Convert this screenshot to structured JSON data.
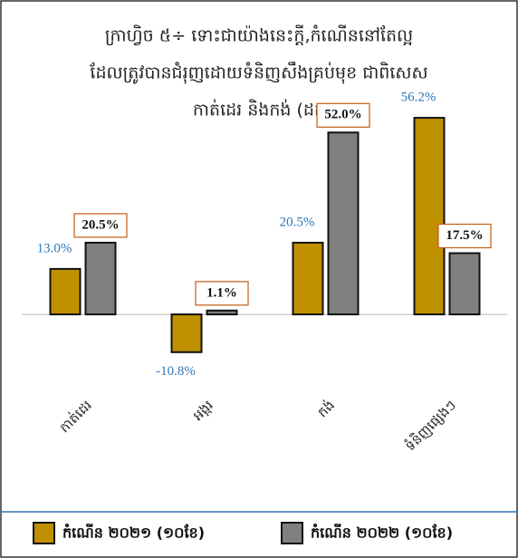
{
  "chart_data": {
    "type": "bar",
    "title": [
      "ក្រាហ្វិច ៥÷  ទោះជាយ៉ាងនេះក្តី,កំណើននៅតែល្អ",
      "ដែលត្រូវបានជំរុញដោយទំនិញសឹងគ្រប់មុខ ជាពិសេស",
      "កាត់ដេរ និងកង់ (ដក"
    ],
    "categories": [
      "កាត់ដេរ",
      "អង្ករ",
      "កង់",
      "ទំនិញផ្សេងៗ"
    ],
    "series": [
      {
        "name": "កំណើន ២០២១ (១០ខែ)",
        "color": "#bf9000",
        "values": [
          13.0,
          -10.8,
          20.5,
          56.2
        ],
        "value_labels": [
          "13.0%",
          "-10.8%",
          "20.5%",
          "56.2%"
        ]
      },
      {
        "name": "កំណើន ២០២២ (១០ខែ)",
        "color": "#7f7f7f",
        "values": [
          20.5,
          1.1,
          52.0,
          17.5
        ],
        "value_labels": [
          "20.5%",
          "1.1%",
          "52.0%",
          "17.5%"
        ]
      }
    ],
    "ylim": [
      -15,
      60
    ]
  }
}
